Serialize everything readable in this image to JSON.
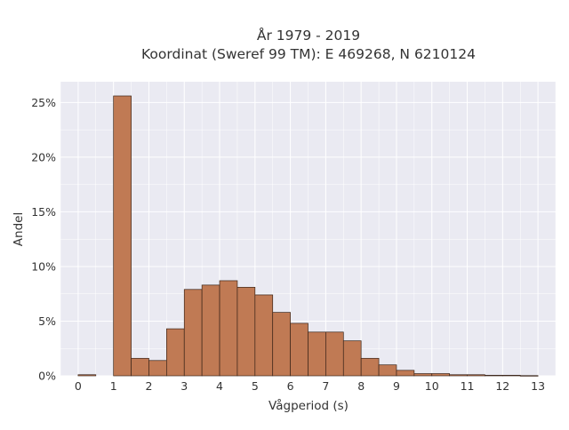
{
  "chart_data": {
    "type": "bar",
    "title": "År 1979 - 2019",
    "subtitle": "Koordinat (Sweref 99 TM): E 469268, N 6210124",
    "xlabel": "Vågperiod (s)",
    "ylabel": "Andel",
    "bin_width": 0.5,
    "x_ticks": [
      "0",
      "1",
      "2",
      "3",
      "4",
      "5",
      "6",
      "7",
      "8",
      "9",
      "10",
      "11",
      "12",
      "13"
    ],
    "y_ticks": [
      "0%",
      "5%",
      "10%",
      "15%",
      "20%",
      "25%"
    ],
    "y_tick_values": [
      0,
      5,
      10,
      15,
      20,
      25
    ],
    "bins_start": [
      0,
      1,
      1.5,
      2,
      2.5,
      3,
      3.5,
      4,
      4.5,
      5,
      5.5,
      6,
      6.5,
      7,
      7.5,
      8,
      8.5,
      9,
      9.5,
      10,
      10.5,
      11,
      11.5,
      12,
      12.5
    ],
    "values": [
      0.1,
      25.6,
      1.6,
      1.4,
      4.3,
      7.9,
      8.3,
      8.7,
      8.1,
      7.4,
      5.8,
      4.8,
      4.0,
      4.0,
      3.2,
      1.6,
      1.0,
      0.5,
      0.2,
      0.2,
      0.1,
      0.1,
      0.05,
      0.05,
      0.02
    ],
    "xlim": [
      -0.5,
      13.5
    ],
    "ylim": [
      0,
      26.9
    ],
    "grid": true,
    "colors": {
      "bar_fill": "#C07A54",
      "bar_edge": "#3a2418",
      "plot_background": "#EAEAF2",
      "grid": "#ffffff"
    }
  }
}
